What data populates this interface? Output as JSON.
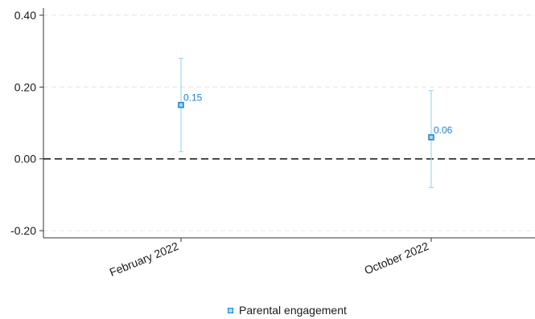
{
  "chart_data": {
    "type": "scatter",
    "categories": [
      "February 2022",
      "October 2022"
    ],
    "series": [
      {
        "name": "Parental engagement",
        "values": [
          0.15,
          0.06
        ],
        "ci_low": [
          0.02,
          -0.08
        ],
        "ci_high": [
          0.28,
          0.19
        ],
        "labels": [
          "0.15",
          "0.06"
        ]
      }
    ],
    "ylim": [
      -0.22,
      0.42
    ],
    "yticks": [
      -0.2,
      0.0,
      0.2,
      0.4
    ],
    "ytick_labels": [
      "-0.20",
      "0.00",
      "0.20",
      "0.40"
    ],
    "reference_line": 0,
    "grid": "horizontal dashed",
    "legend_position": "bottom",
    "colors": {
      "marker": "#1f7fd0",
      "marker_fill": "#9fd8f2",
      "error_bar": "#9fd8f2",
      "label": "#1f7fd0",
      "reference": "#111111",
      "grid": "#e6e6e6"
    }
  }
}
